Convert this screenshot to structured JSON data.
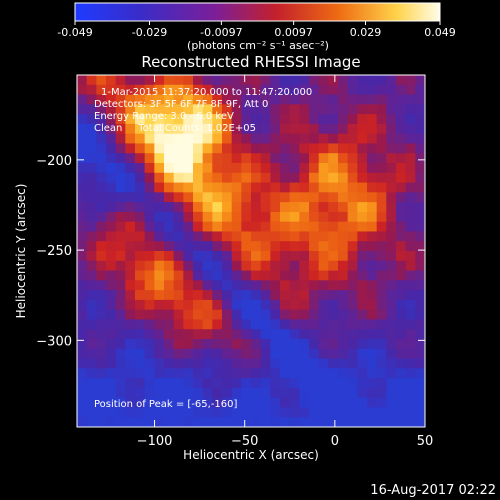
{
  "chart_data": {
    "type": "heatmap",
    "title": "Reconstructed RHESSI Image",
    "xlabel": "Heliocentric X (arcsec)",
    "ylabel": "Heliocentric Y (arcsec)",
    "xlim": [
      -143,
      50
    ],
    "ylim": [
      -348,
      -153
    ],
    "xticks": [
      -100,
      -50,
      0,
      50
    ],
    "yticks": [
      -200,
      -250,
      -300
    ],
    "colorbar": {
      "min": -0.049,
      "max": 0.049,
      "ticks": [
        "-0.049",
        "-0.029",
        "-0.0097",
        "0.0097",
        "0.029",
        "0.049"
      ],
      "unit_label": "(photons cm⁻² s⁻¹ asec⁻²)"
    },
    "annotations": {
      "time_range": "1-Mar-2015 11:37:20.000 to 11:47:20.000",
      "detectors": "Detectors: 3F 5F 6F 7F 8F 9F, Att 0",
      "energy_range": "Energy Range: 3.0 - 6.0 keV",
      "method_counts": "Clean     Total Counts: 1.02E+05",
      "peak": "Position of Peak = [-65,-160]"
    },
    "colors": {
      "low": "#2e4bd8",
      "mid_low": "#5a2fb0",
      "mid": "#d7372b",
      "high": "#ffd24a",
      "peak": "#ffffff"
    },
    "source_regions_note_excluded": true
  },
  "footer": {
    "timestamp": "16-Aug-2017 02:22"
  }
}
